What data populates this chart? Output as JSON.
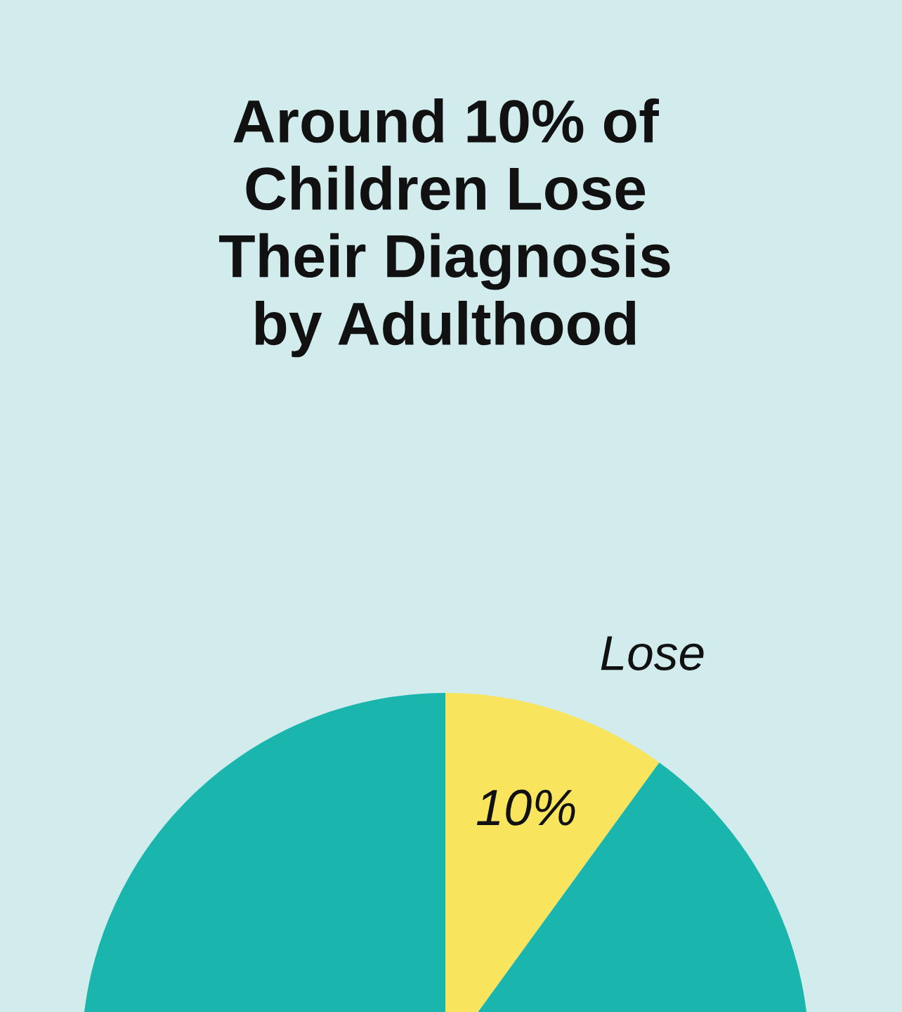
{
  "chart_data": {
    "type": "pie",
    "title": "Around 10% of\nChildren Lose\nTheir Diagnosis\nby Adulthood",
    "categories": [
      "Lose",
      null
    ],
    "values": [
      10,
      90
    ],
    "colors": [
      "#f9e45e",
      "#1ab5ad"
    ],
    "value_labels": [
      "10%",
      null
    ]
  }
}
